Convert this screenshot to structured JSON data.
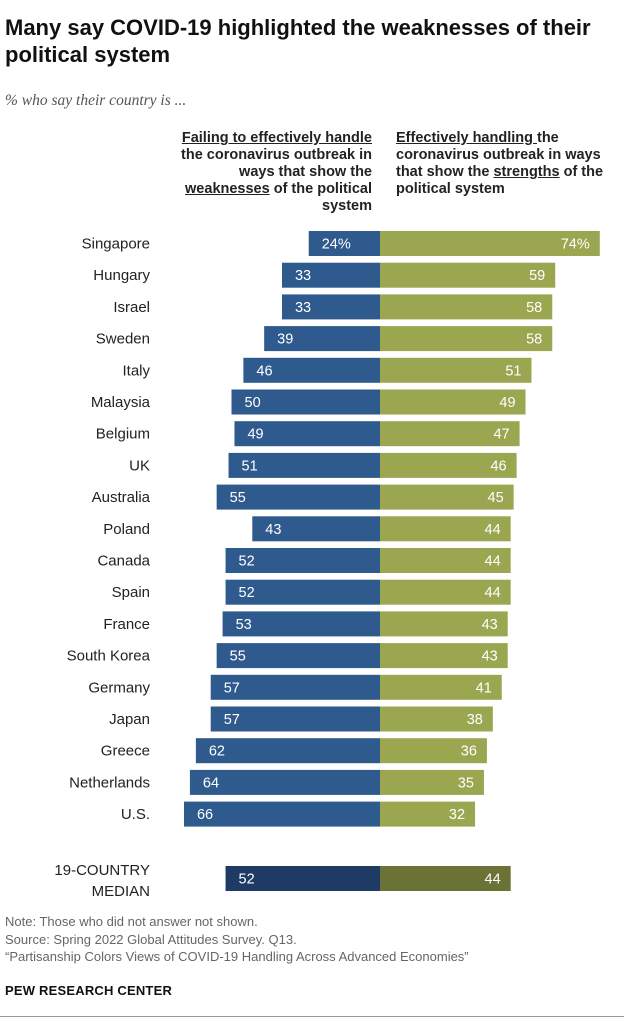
{
  "title": "Many say COVID-19 highlighted the weaknesses of their political system",
  "subtitle": "% who say their country is ...",
  "chart_data": {
    "type": "bar",
    "orientation": "horizontal-diverging",
    "series": [
      {
        "name_parts": {
          "u1": "Failing to effectively handle",
          "t1": " the coronavirus outbreak in ways that show the ",
          "u2": "weaknesses",
          "t2": " of the political system"
        },
        "color": "#2f5a8e",
        "values": [
          24,
          33,
          33,
          39,
          46,
          50,
          49,
          51,
          55,
          43,
          52,
          52,
          53,
          55,
          57,
          57,
          62,
          64,
          66
        ]
      },
      {
        "name_parts": {
          "u1": "Effectively handling ",
          "t1": "the coronavirus outbreak in ways that show the ",
          "u2": "strengths",
          "t2": " of the political system"
        },
        "color": "#9ba750",
        "values": [
          74,
          59,
          58,
          58,
          51,
          49,
          47,
          46,
          45,
          44,
          44,
          44,
          43,
          43,
          41,
          38,
          36,
          35,
          32
        ]
      }
    ],
    "categories": [
      "Singapore",
      "Hungary",
      "Israel",
      "Sweden",
      "Italy",
      "Malaysia",
      "Belgium",
      "UK",
      "Australia",
      "Poland",
      "Canada",
      "Spain",
      "France",
      "South Korea",
      "Germany",
      "Japan",
      "Greece",
      "Netherlands",
      "U.S."
    ],
    "value_labels_first": [
      "24%",
      "74%"
    ],
    "median": {
      "label_line1": "19-COUNTRY",
      "label_line2": "MEDIAN",
      "values": [
        52,
        44
      ],
      "colors": [
        "#1d3b64",
        "#6b7236"
      ]
    }
  },
  "footer": {
    "note": "Note: Those who did not answer not shown.",
    "source": "Source: Spring 2022 Global Attitudes Survey. Q13.",
    "report": "“Partisanship Colors Views of COVID-19 Handling Across Advanced Economies”",
    "brand": "PEW RESEARCH CENTER"
  }
}
